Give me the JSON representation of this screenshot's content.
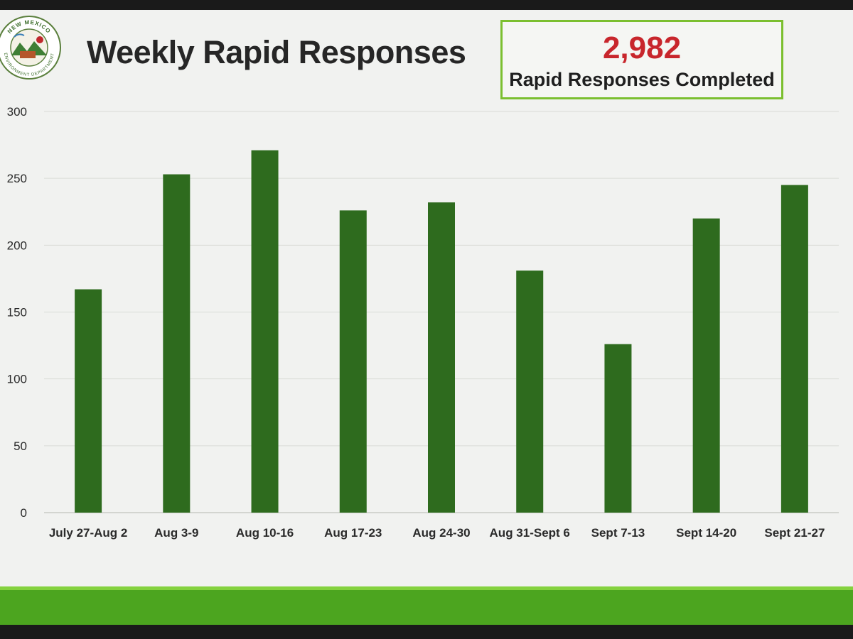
{
  "slide": {
    "title": "Weekly Rapid Responses",
    "kpi": {
      "value": "2,982",
      "label": "Rapid Responses Completed"
    },
    "colors": {
      "bar": "#2e6b1e",
      "kpi_value": "#c8262c",
      "kpi_border": "#7bbf2f",
      "footer": "#4ca51f"
    },
    "logo": {
      "text": "NEW MEXICO ENVIRONMENT DEPARTMENT"
    }
  },
  "chart_data": {
    "type": "bar",
    "title": "Weekly Rapid Responses",
    "xlabel": "",
    "ylabel": "",
    "categories": [
      "July 27-Aug 2",
      "Aug 3-9",
      "Aug 10-16",
      "Aug 17-23",
      "Aug 24-30",
      "Aug 31-Sept 6",
      "Sept 7-13",
      "Sept 14-20",
      "Sept 21-27"
    ],
    "values": [
      167,
      253,
      271,
      226,
      232,
      181,
      126,
      220,
      245
    ],
    "ylim": [
      0,
      300
    ],
    "yticks": [
      0,
      50,
      100,
      150,
      200,
      250,
      300
    ],
    "grid": true,
    "legend": "none"
  }
}
